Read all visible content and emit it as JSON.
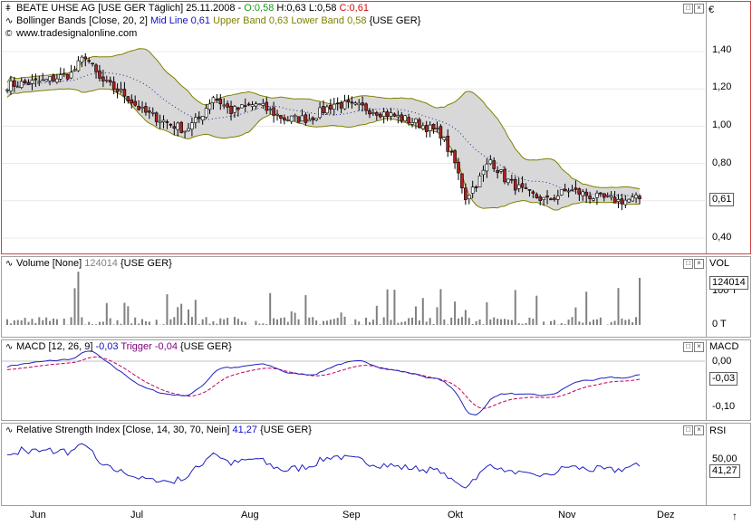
{
  "main_pane": {
    "title": "BEATE UHSE AG [USE GER  Täglich] 25.11.2008 -",
    "ohlc": {
      "o": "O:0,58",
      "h": "H:0,63",
      "l": "L:0,58",
      "c": "C:0,61"
    },
    "bb_label": "Bollinger Bands [Close, 20, 2]",
    "bb_mid": "Mid Line 0,61",
    "bb_upper": "Upper Band 0,63",
    "bb_lower": "Lower Band 0,58",
    "bb_suffix": "{USE GER}",
    "watermark": "www.tradesignalonline.com",
    "currency": "€",
    "last_value": "0,61",
    "ticks": [
      "1,40",
      "1,20",
      "1,00",
      "0,80",
      "0,40"
    ]
  },
  "volume_pane": {
    "label": "Volume [None]",
    "value": "124014",
    "suffix": "{USE GER}",
    "axis_title": "VOL",
    "last_value": "124014",
    "ticks": [
      "100 T",
      "0 T"
    ]
  },
  "macd_pane": {
    "label": "MACD [12, 26, 9]",
    "macd_value": "-0,03",
    "trigger": "Trigger -0,04",
    "suffix": "{USE GER}",
    "axis_title": "MACD",
    "last_value": "-0,03",
    "ticks": [
      "0,00",
      "-0,10"
    ]
  },
  "rsi_pane": {
    "label": "Relative Strength Index [Close, 14, 30, 70, Nein]",
    "value": "41,27",
    "suffix": "{USE GER}",
    "axis_title": "RSI",
    "last_value": "41,27",
    "ticks": [
      "50,00"
    ]
  },
  "x_axis": {
    "months": [
      "Jun",
      "Jul",
      "Aug",
      "Sep",
      "Okt",
      "Nov",
      "Dez"
    ]
  },
  "colors": {
    "up": "#ffffff",
    "down": "#b02020",
    "band": "#808000",
    "band_fill": "#d8d8d8",
    "mid": "#2020a0",
    "macd": "#2020c0",
    "trigger": "#c00060",
    "rsi": "#2020c0",
    "volume": "#808080"
  },
  "chart_data": [
    {
      "type": "candlestick",
      "title": "BEATE UHSE AG",
      "ylabel": "€",
      "ylim": [
        0.3,
        1.58
      ],
      "y_scale": "linear",
      "indicators": [
        "Bollinger Bands [Close, 20, 2]"
      ],
      "x": [
        "Jun",
        "Jul",
        "Aug",
        "Sep",
        "Okt",
        "Nov",
        "Dez"
      ],
      "close_approx": {
        "months": [
          "Jun",
          "Jul",
          "Aug",
          "Sep",
          "Okt",
          "Nov",
          "late Nov"
        ],
        "values": [
          1.22,
          1.0,
          1.08,
          1.1,
          0.72,
          0.62,
          0.61
        ]
      },
      "last": {
        "open": 0.58,
        "high": 0.63,
        "low": 0.58,
        "close": 0.61
      },
      "bollinger_last": {
        "mid": 0.61,
        "upper": 0.63,
        "lower": 0.58
      }
    },
    {
      "type": "bar",
      "title": "Volume [None]",
      "last": 124014,
      "ylabel": "VOL"
    },
    {
      "type": "line",
      "title": "MACD [12, 26, 9]",
      "series": [
        {
          "name": "MACD",
          "last": -0.03
        },
        {
          "name": "Trigger",
          "last": -0.04
        }
      ],
      "ylim": [
        -0.12,
        0.02
      ]
    },
    {
      "type": "line",
      "title": "Relative Strength Index [Close, 14, 30, 70, Nein]",
      "series": [
        {
          "name": "RSI",
          "last": 41.27
        }
      ]
    }
  ]
}
